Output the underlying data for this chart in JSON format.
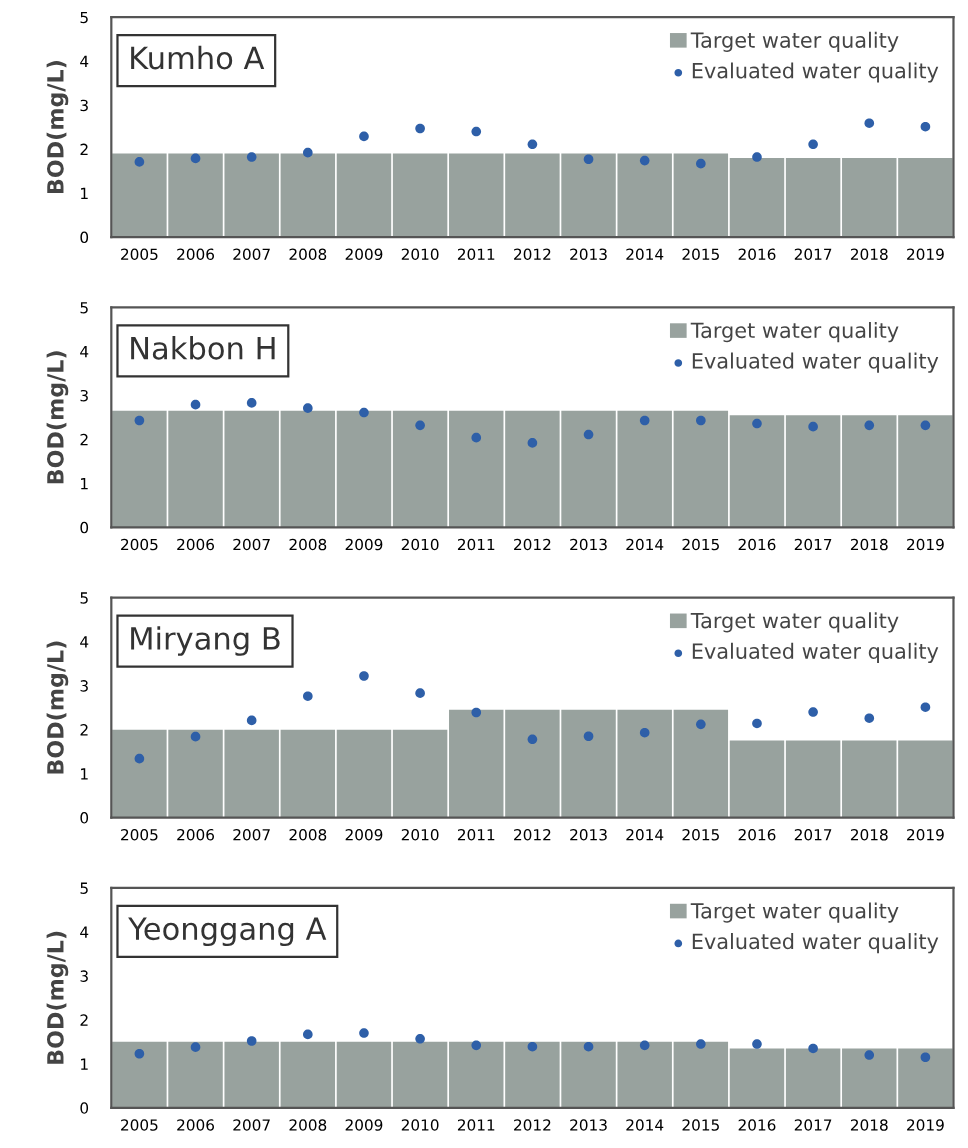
{
  "chart_data": [
    {
      "type": "bar",
      "annotations": [
        "Kumho A"
      ],
      "ylabel": "BOD(mg/L)",
      "categories": [
        "2005",
        "2006",
        "2007",
        "2008",
        "2009",
        "2010",
        "2011",
        "2012",
        "2013",
        "2014",
        "2015",
        "2016",
        "2017",
        "2018",
        "2019"
      ],
      "ylim": [
        0,
        5
      ],
      "yticks": [
        0,
        1,
        2,
        3,
        4,
        5
      ],
      "grid": false,
      "legend": "top right",
      "marker": "circle",
      "series": [
        {
          "name": "Target water quality",
          "color": "#98a29e",
          "values": [
            1.9,
            1.9,
            1.9,
            1.9,
            1.9,
            1.9,
            1.9,
            1.9,
            1.9,
            1.9,
            1.9,
            1.8,
            1.8,
            1.8,
            1.8
          ]
        },
        {
          "name": "Evaluated water quality",
          "type": "scatter",
          "color": "#2e5fa8",
          "values": [
            1.71,
            1.79,
            1.82,
            1.92,
            2.29,
            2.47,
            2.4,
            2.11,
            1.77,
            1.74,
            1.67,
            1.82,
            2.11,
            2.59,
            2.51
          ]
        }
      ]
    },
    {
      "type": "bar",
      "annotations": [
        "Nakbon H"
      ],
      "ylabel": "BOD(mg/L)",
      "categories": [
        "2005",
        "2006",
        "2007",
        "2008",
        "2009",
        "2010",
        "2011",
        "2012",
        "2013",
        "2014",
        "2015",
        "2016",
        "2017",
        "2018",
        "2019"
      ],
      "ylim": [
        0,
        5
      ],
      "yticks": [
        0,
        1,
        2,
        3,
        4,
        5
      ],
      "grid": false,
      "legend": "top right",
      "marker": "circle",
      "series": [
        {
          "name": "Target water quality",
          "color": "#98a29e",
          "values": [
            2.65,
            2.65,
            2.65,
            2.65,
            2.65,
            2.65,
            2.65,
            2.65,
            2.65,
            2.65,
            2.65,
            2.55,
            2.55,
            2.55,
            2.55
          ]
        },
        {
          "name": "Evaluated water quality",
          "type": "scatter",
          "color": "#2e5fa8",
          "values": [
            2.43,
            2.79,
            2.83,
            2.71,
            2.61,
            2.32,
            2.04,
            1.92,
            2.11,
            2.43,
            2.43,
            2.36,
            2.29,
            2.32,
            2.32
          ]
        }
      ]
    },
    {
      "type": "bar",
      "annotations": [
        "Miryang B"
      ],
      "ylabel": "BOD(mg/L)",
      "categories": [
        "2005",
        "2006",
        "2007",
        "2008",
        "2009",
        "2010",
        "2011",
        "2012",
        "2013",
        "2014",
        "2015",
        "2016",
        "2017",
        "2018",
        "2019"
      ],
      "ylim": [
        0,
        5
      ],
      "yticks": [
        0,
        1,
        2,
        3,
        4,
        5
      ],
      "grid": false,
      "legend": "top right",
      "marker": "circle",
      "series": [
        {
          "name": "Target water quality",
          "color": "#98a29e",
          "values": [
            2.0,
            2.0,
            2.0,
            2.0,
            2.0,
            2.0,
            2.45,
            2.45,
            2.45,
            2.45,
            2.45,
            1.75,
            1.75,
            1.75,
            1.75
          ]
        },
        {
          "name": "Evaluated water quality",
          "type": "scatter",
          "color": "#2e5fa8",
          "values": [
            1.34,
            1.84,
            2.21,
            2.76,
            3.22,
            2.83,
            2.39,
            1.78,
            1.85,
            1.93,
            2.12,
            2.14,
            2.4,
            2.26,
            2.51
          ]
        }
      ]
    },
    {
      "type": "bar",
      "annotations": [
        "Yeonggang A"
      ],
      "ylabel": "BOD(mg/L)",
      "categories": [
        "2005",
        "2006",
        "2007",
        "2008",
        "2009",
        "2010",
        "2011",
        "2012",
        "2013",
        "2014",
        "2015",
        "2016",
        "2017",
        "2018",
        "2019"
      ],
      "ylim": [
        0,
        5
      ],
      "yticks": [
        0,
        1,
        2,
        3,
        4,
        5
      ],
      "grid": false,
      "legend": "top right",
      "marker": "circle",
      "series": [
        {
          "name": "Target water quality",
          "color": "#98a29e",
          "values": [
            1.5,
            1.5,
            1.5,
            1.5,
            1.5,
            1.5,
            1.5,
            1.5,
            1.5,
            1.5,
            1.5,
            1.35,
            1.35,
            1.35,
            1.35
          ]
        },
        {
          "name": "Evaluated water quality",
          "type": "scatter",
          "color": "#2e5fa8",
          "values": [
            1.23,
            1.38,
            1.52,
            1.67,
            1.7,
            1.57,
            1.42,
            1.39,
            1.39,
            1.42,
            1.45,
            1.45,
            1.35,
            1.2,
            1.15
          ]
        }
      ]
    }
  ]
}
